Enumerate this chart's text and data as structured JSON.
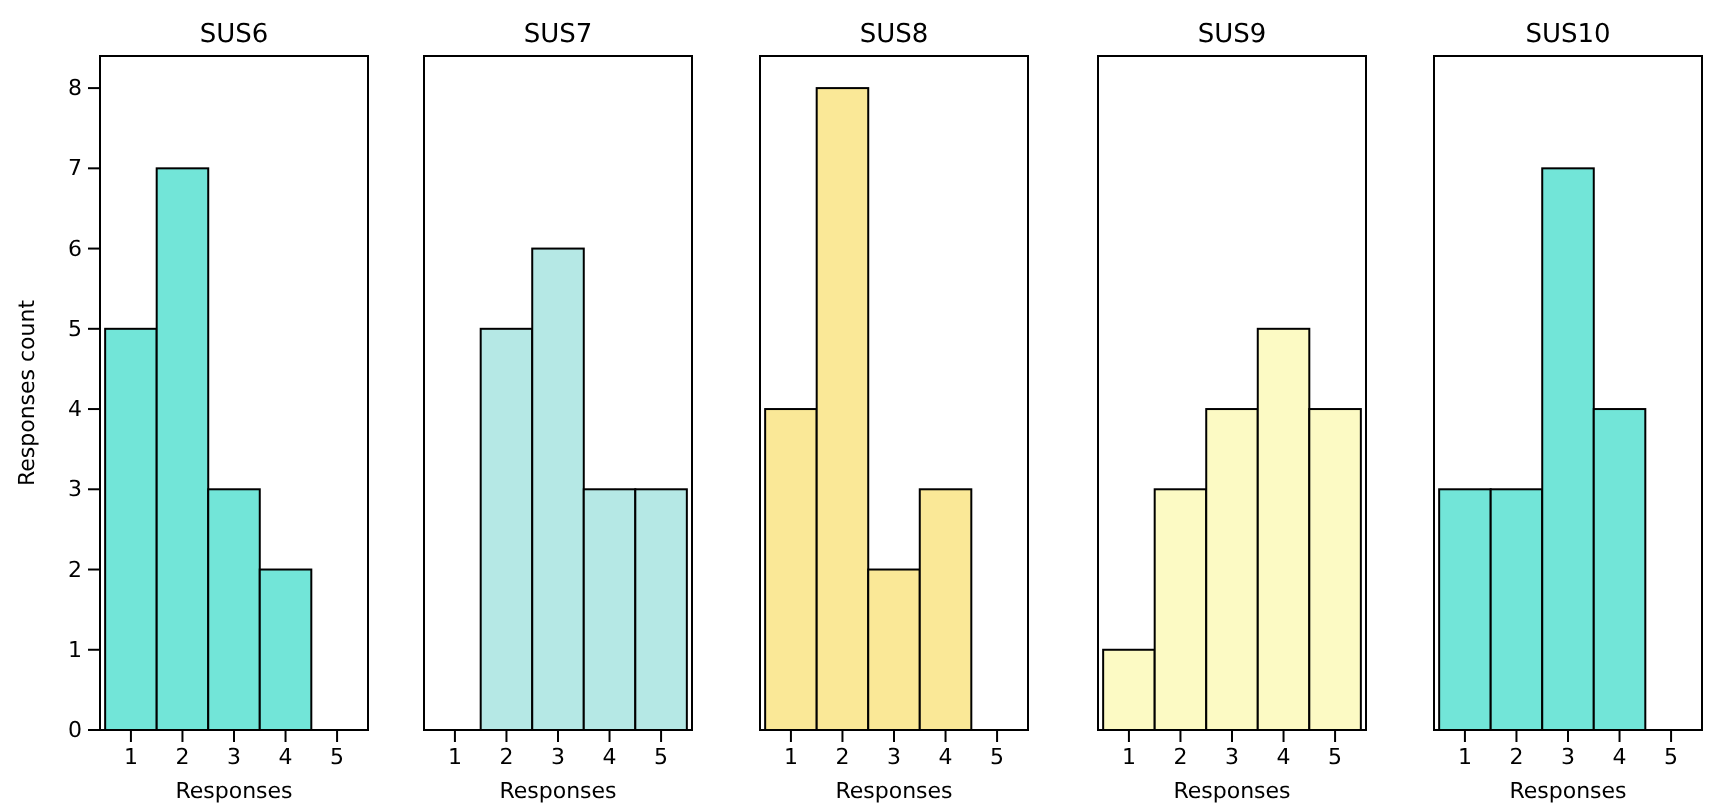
{
  "chart_data": [
    {
      "type": "histogram",
      "title": "SUS6",
      "xlabel": "Responses",
      "ylabel": "Responses count",
      "bins": [
        0.5,
        1.5,
        2.5,
        3.5,
        4.5,
        5.5
      ],
      "values": [
        5,
        7,
        3,
        2,
        0
      ],
      "color": "#72e5d8",
      "xlim": [
        0.4,
        5.6
      ],
      "xticks": [
        1,
        2,
        3,
        4,
        5
      ],
      "ylim": [
        0,
        8.4
      ],
      "yticks": [
        0,
        1,
        2,
        3,
        4,
        5,
        6,
        7,
        8
      ]
    },
    {
      "type": "histogram",
      "title": "SUS7",
      "xlabel": "Responses",
      "bins": [
        0.5,
        1.5,
        2.5,
        3.5,
        4.5,
        5.5
      ],
      "values": [
        0,
        5,
        6,
        3,
        3
      ],
      "color": "#b5e8e5",
      "xlim": [
        0.4,
        5.6
      ],
      "xticks": [
        1,
        2,
        3,
        4,
        5
      ],
      "ylim": [
        0,
        8.4
      ],
      "yticks": [
        0,
        1,
        2,
        3,
        4,
        5,
        6,
        7,
        8
      ],
      "tick_labels": "x"
    },
    {
      "type": "histogram",
      "title": "SUS8",
      "xlabel": "Responses",
      "bins": [
        0.5,
        1.5,
        2.5,
        3.5,
        4.5,
        5.5
      ],
      "values": [
        4,
        8,
        2,
        3,
        0
      ],
      "color": "#fae897",
      "xlim": [
        0.4,
        5.6
      ],
      "xticks": [
        1,
        2,
        3,
        4,
        5
      ],
      "ylim": [
        0,
        8.4
      ],
      "yticks": [
        0,
        1,
        2,
        3,
        4,
        5,
        6,
        7,
        8
      ],
      "tick_labels": "x"
    },
    {
      "type": "histogram",
      "title": "SUS9",
      "xlabel": "Responses",
      "bins": [
        0.5,
        1.5,
        2.5,
        3.5,
        4.5,
        5.5
      ],
      "values": [
        1,
        3,
        4,
        5,
        4
      ],
      "color": "#fcfac4",
      "xlim": [
        0.4,
        5.6
      ],
      "xticks": [
        1,
        2,
        3,
        4,
        5
      ],
      "ylim": [
        0,
        8.4
      ],
      "yticks": [
        0,
        1,
        2,
        3,
        4,
        5,
        6,
        7,
        8
      ],
      "tick_labels": "x"
    },
    {
      "type": "histogram",
      "title": "SUS10",
      "xlabel": "Responses",
      "bins": [
        0.5,
        1.5,
        2.5,
        3.5,
        4.5,
        5.5
      ],
      "values": [
        3,
        3,
        7,
        4,
        0
      ],
      "color": "#72e5d8",
      "xlim": [
        0.4,
        5.6
      ],
      "xticks": [
        1,
        2,
        3,
        4,
        5
      ],
      "ylim": [
        0,
        8.4
      ],
      "yticks": [
        0,
        1,
        2,
        3,
        4,
        5,
        6,
        7,
        8
      ],
      "tick_labels": "x"
    }
  ]
}
